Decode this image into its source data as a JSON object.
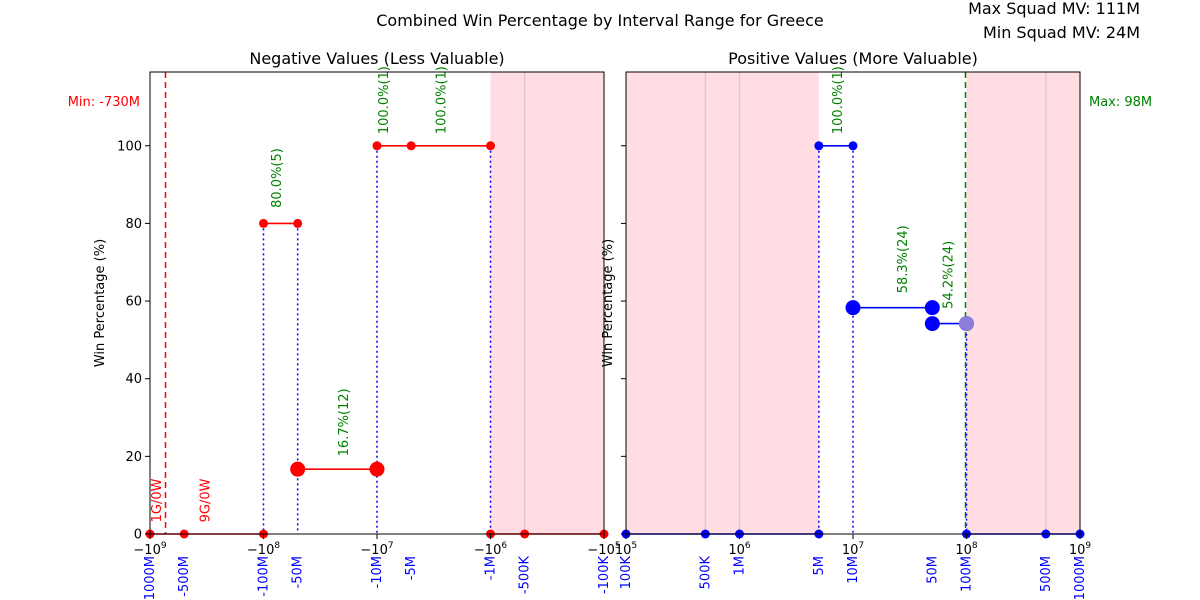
{
  "figure": {
    "title": "Combined Win Percentage by Interval Range for Greece",
    "max_squad_mv": "Max Squad MV: 111M",
    "min_squad_mv": "Min Squad MV: 24M"
  },
  "chart_data": [
    {
      "type": "line",
      "title": "Negative Values (Less Valuable)",
      "xlabel": "",
      "ylabel": "Win Percentage (%)",
      "x_scale": "symlog",
      "xlim": [
        -1000000000,
        -100000
      ],
      "ylim": [
        0,
        100
      ],
      "yticks": [
        0,
        20,
        40,
        60,
        80,
        100
      ],
      "grid": false,
      "xtick_labels_math": [
        "−10^9",
        "−10^8",
        "−10^7",
        "−10^6",
        "−10^5"
      ],
      "xtick_labels_math_values": [
        -1000000000,
        -100000000,
        -10000000,
        -1000000,
        -100000
      ],
      "xtick_labels_custom": [
        {
          "value": -1000000000,
          "label": "-1000M"
        },
        {
          "value": -500000000,
          "label": "-500M"
        },
        {
          "value": -100000000,
          "label": "-100M"
        },
        {
          "value": -50000000,
          "label": "-50M"
        },
        {
          "value": -10000000,
          "label": "-10M"
        },
        {
          "value": -5000000,
          "label": "-5M"
        },
        {
          "value": -1000000,
          "label": "-1M"
        },
        {
          "value": -500000,
          "label": "-500K"
        },
        {
          "value": -100000,
          "label": "-100K"
        }
      ],
      "shaded_regions": [
        {
          "from": -1000000,
          "to": -100000,
          "color": "#ffdde3"
        }
      ],
      "faint_vlines": [
        -500000
      ],
      "vline": {
        "value": -730000000,
        "label": "Min: -730M",
        "color": "#ff0000"
      },
      "segments": [
        {
          "x": [
            -1000000000,
            -500000000,
            -100000000
          ],
          "y": [
            0,
            0,
            0
          ],
          "big": false
        },
        {
          "x": [
            -100000000,
            -50000000
          ],
          "y": [
            80,
            80
          ],
          "big": false
        },
        {
          "x": [
            -50000000,
            -10000000
          ],
          "y": [
            16.7,
            16.7
          ],
          "big": true
        },
        {
          "x": [
            -10000000,
            -5000000,
            -1000000
          ],
          "y": [
            100,
            100,
            100
          ],
          "big": false
        },
        {
          "x": [
            -1000000,
            -500000,
            -100000
          ],
          "y": [
            0,
            0,
            0
          ],
          "big": false
        }
      ],
      "droplines": [
        {
          "x": -100000000,
          "y": 80
        },
        {
          "x": -50000000,
          "y": 80
        },
        {
          "x": -10000000,
          "y": 100
        },
        {
          "x": -1000000,
          "y": 100
        }
      ],
      "annotations": [
        {
          "x": -800000000,
          "y": 3,
          "text": "1G/0W",
          "color": "#ff0000"
        },
        {
          "x": -300000000,
          "y": 3,
          "text": "9G/0W",
          "color": "#ff0000"
        },
        {
          "x": -70000000,
          "y": 84,
          "text": "80.0%(5)",
          "color": "#008000"
        },
        {
          "x": -18000000,
          "y": 20,
          "text": "16.7%(12)",
          "color": "#008000"
        },
        {
          "x": -8000000,
          "y": 103,
          "text": "100.0%(1)",
          "color": "#008000"
        },
        {
          "x": -2500000,
          "y": 103,
          "text": "100.0%(1)",
          "color": "#008000"
        }
      ],
      "line_color": "#ff0000"
    },
    {
      "type": "line",
      "title": "Positive Values (More Valuable)",
      "xlabel": "",
      "ylabel": "Win Percentage (%)",
      "x_scale": "log",
      "xlim": [
        100000,
        1000000000
      ],
      "ylim": [
        0,
        100
      ],
      "yticks": [
        0,
        20,
        40,
        60,
        80,
        100
      ],
      "grid": false,
      "xtick_labels_math": [
        "10^5",
        "10^6",
        "10^7",
        "10^8",
        "10^9"
      ],
      "xtick_labels_math_values": [
        100000,
        1000000,
        10000000,
        100000000,
        1000000000
      ],
      "xtick_labels_custom": [
        {
          "value": 100000,
          "label": "100K"
        },
        {
          "value": 500000,
          "label": "500K"
        },
        {
          "value": 1000000,
          "label": "1M"
        },
        {
          "value": 5000000,
          "label": "5M"
        },
        {
          "value": 10000000,
          "label": "10M"
        },
        {
          "value": 50000000,
          "label": "50M"
        },
        {
          "value": 100000000,
          "label": "100M"
        },
        {
          "value": 500000000,
          "label": "500M"
        },
        {
          "value": 1000000000,
          "label": "1000M"
        }
      ],
      "shaded_regions": [
        {
          "from": 100000,
          "to": 5000000,
          "color": "#ffdde3"
        },
        {
          "from": 100000000,
          "to": 1000000000,
          "color": "#ffdde3"
        }
      ],
      "faint_vlines": [
        500000,
        1000000,
        500000000
      ],
      "vline": {
        "value": 98000000,
        "label": "Max: 98M",
        "color": "#008000"
      },
      "segments": [
        {
          "x": [
            100000,
            500000,
            1000000,
            5000000
          ],
          "y": [
            0,
            0,
            0,
            0
          ],
          "big": false
        },
        {
          "x": [
            5000000,
            10000000
          ],
          "y": [
            100,
            100
          ],
          "big": false
        },
        {
          "x": [
            10000000,
            50000000
          ],
          "y": [
            58.3,
            58.3
          ],
          "big": true
        },
        {
          "x": [
            50000000,
            100000000
          ],
          "y": [
            54.2,
            54.2
          ],
          "big": true
        },
        {
          "x": [
            100000000,
            500000000,
            1000000000
          ],
          "y": [
            0,
            0,
            0
          ],
          "big": false
        }
      ],
      "droplines": [
        {
          "x": 5000000,
          "y": 100
        },
        {
          "x": 10000000,
          "y": 100
        },
        {
          "x": 100000000,
          "y": 54.2
        }
      ],
      "highlight_point": {
        "x": 100000000,
        "y": 54.2
      },
      "annotations": [
        {
          "x": 8000000,
          "y": 103,
          "text": "100.0%(1)",
          "color": "#008000"
        },
        {
          "x": 30000000,
          "y": 62,
          "text": "58.3%(24)",
          "color": "#008000"
        },
        {
          "x": 75000000,
          "y": 58,
          "text": "54.2%(24)",
          "color": "#008000"
        }
      ],
      "line_color": "#0000ff"
    }
  ]
}
